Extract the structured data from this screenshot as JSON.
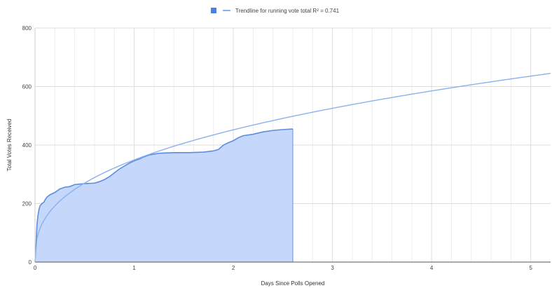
{
  "colors": {
    "area_fill": "#c5d7fa",
    "area_line": "#5b8de0",
    "trend_line": "#8ab1ef",
    "legend_square": "#4a7fe3",
    "grid": "#dddddd",
    "axis": "#555555"
  },
  "chart_data": {
    "type": "area",
    "legend": {
      "position": "top",
      "entries": [
        {
          "marker": "square",
          "label": ""
        },
        {
          "marker": "line",
          "label": "Trendline for running vote total R² = 0.741"
        }
      ]
    },
    "xlabel": "Days Since Polls Opened",
    "ylabel": "Total Votes Received",
    "xlim": [
      0,
      5.2
    ],
    "ylim": [
      0,
      800
    ],
    "x_ticks": [
      0,
      1,
      2,
      3,
      4,
      5
    ],
    "y_ticks": [
      0,
      200,
      400,
      600,
      800
    ],
    "grid": true,
    "series": [
      {
        "kind": "area",
        "points": [
          [
            0,
            0
          ],
          [
            0.01,
            60
          ],
          [
            0.02,
            130
          ],
          [
            0.03,
            160
          ],
          [
            0.04,
            180
          ],
          [
            0.05,
            192
          ],
          [
            0.07,
            200
          ],
          [
            0.09,
            205
          ],
          [
            0.1,
            212
          ],
          [
            0.12,
            222
          ],
          [
            0.15,
            230
          ],
          [
            0.2,
            238
          ],
          [
            0.25,
            250
          ],
          [
            0.3,
            256
          ],
          [
            0.35,
            258
          ],
          [
            0.4,
            265
          ],
          [
            0.5,
            268
          ],
          [
            0.6,
            270
          ],
          [
            0.65,
            275
          ],
          [
            0.7,
            282
          ],
          [
            0.75,
            292
          ],
          [
            0.8,
            305
          ],
          [
            0.85,
            318
          ],
          [
            0.9,
            328
          ],
          [
            0.95,
            338
          ],
          [
            1.0,
            346
          ],
          [
            1.05,
            352
          ],
          [
            1.1,
            360
          ],
          [
            1.15,
            366
          ],
          [
            1.25,
            372
          ],
          [
            1.4,
            374
          ],
          [
            1.55,
            374
          ],
          [
            1.7,
            376
          ],
          [
            1.8,
            380
          ],
          [
            1.85,
            385
          ],
          [
            1.9,
            400
          ],
          [
            1.95,
            408
          ],
          [
            2.0,
            415
          ],
          [
            2.05,
            425
          ],
          [
            2.1,
            432
          ],
          [
            2.2,
            437
          ],
          [
            2.3,
            445
          ],
          [
            2.4,
            450
          ],
          [
            2.5,
            453
          ],
          [
            2.6,
            455
          ]
        ]
      },
      {
        "kind": "trendline",
        "function": "power",
        "a": 349.3,
        "b": 0.372
      }
    ]
  }
}
